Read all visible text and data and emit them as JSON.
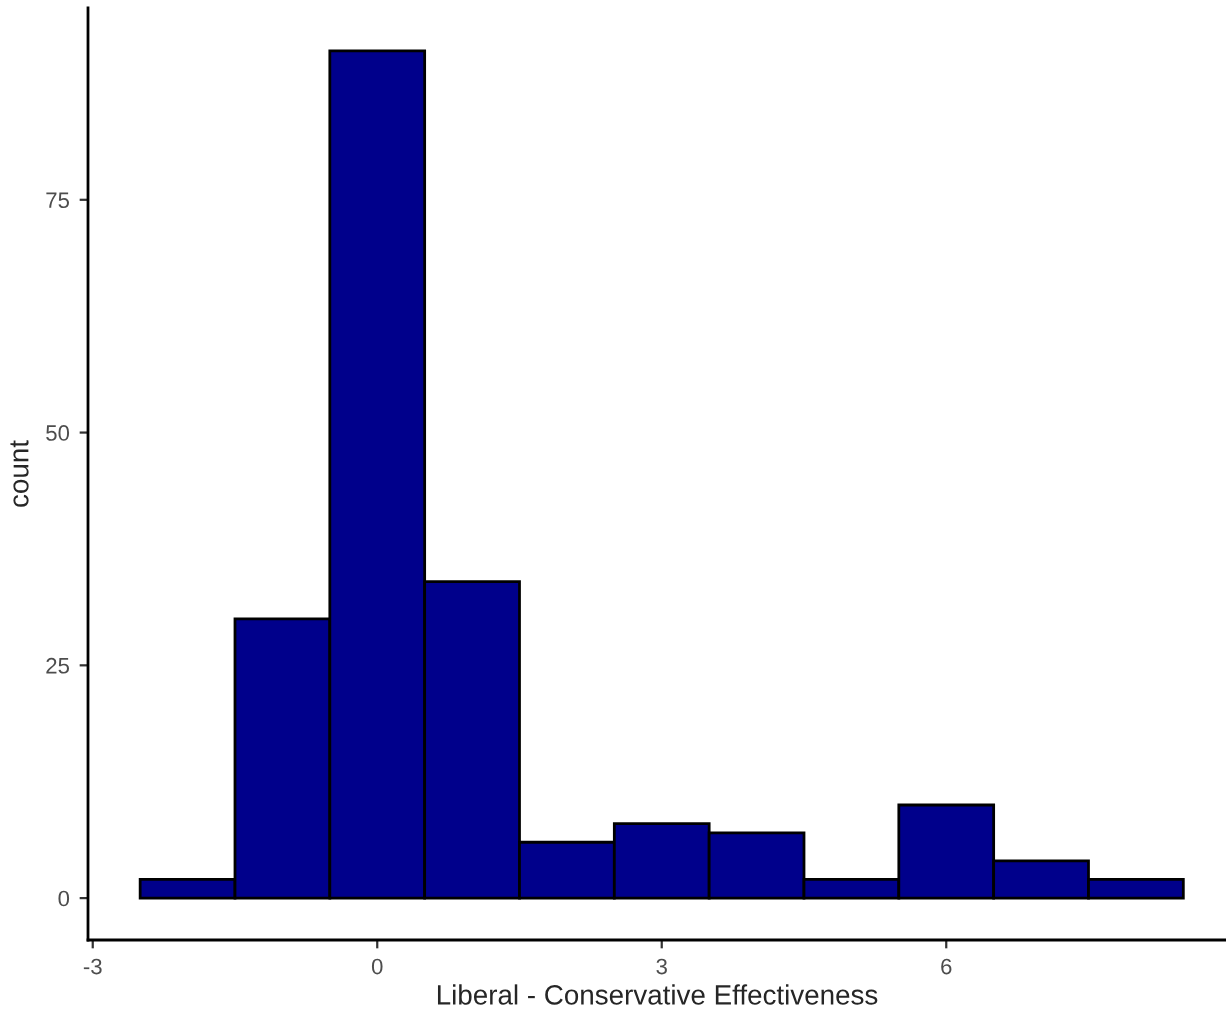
{
  "chart_data": {
    "type": "histogram",
    "xlabel": "Liberal - Conservative Effectiveness",
    "ylabel": "count",
    "bins": [
      -2.5,
      -1.5,
      -0.5,
      0.5,
      1.5,
      2.5,
      3.5,
      4.5,
      5.5,
      6.5,
      7.5,
      8.5
    ],
    "values": [
      2,
      30,
      91,
      34,
      6,
      8,
      7,
      2,
      10,
      4,
      2
    ],
    "color": "#00008b",
    "xlim": [
      -3.05,
      8.95
    ],
    "xticks": [
      {
        "value": -3,
        "label": "-3"
      },
      0,
      3,
      6
    ],
    "ylim": [
      -4.5,
      95.6
    ],
    "yticks": [
      0,
      25,
      50,
      75
    ],
    "grid": false
  }
}
